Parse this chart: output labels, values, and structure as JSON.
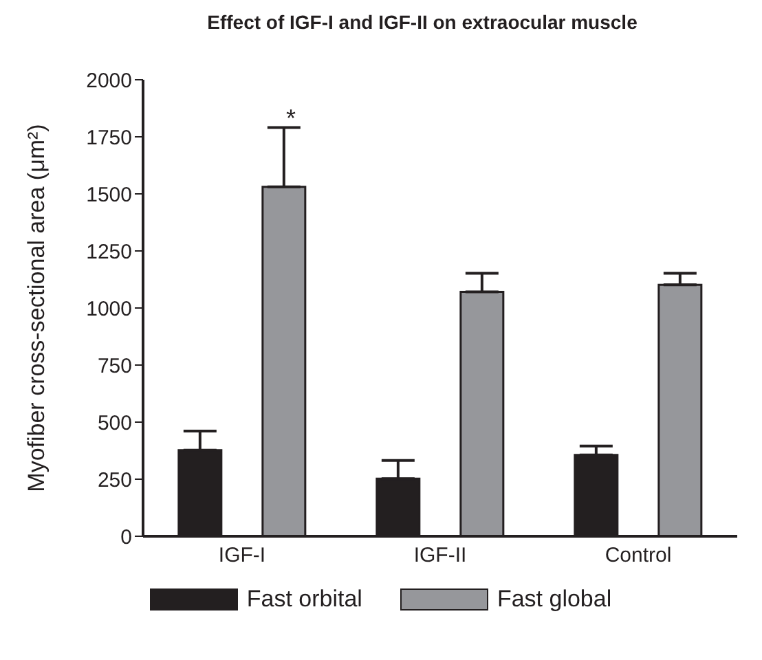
{
  "chart_data": {
    "type": "bar",
    "title": "Effect of IGF-I and IGF-II on extraocular muscle",
    "ylabel": "Myofiber cross-sectional area (μm²)",
    "categories": [
      "IGF-I",
      "IGF-II",
      "Control"
    ],
    "series": [
      {
        "name": "Fast orbital",
        "color": "#231f20",
        "values": [
          377,
          252,
          356
        ],
        "errors": [
          [
            377,
            461
          ],
          [
            252,
            332
          ],
          [
            356,
            395
          ]
        ]
      },
      {
        "name": "Fast global",
        "color": "#96979b",
        "values": [
          1531,
          1071,
          1102
        ],
        "errors": [
          [
            1531,
            1791
          ],
          [
            1071,
            1152
          ],
          [
            1102,
            1152
          ]
        ]
      }
    ],
    "ylim": [
      0,
      2000
    ],
    "yticks": [
      0,
      250,
      500,
      750,
      1000,
      1250,
      1500,
      1750,
      2000
    ],
    "grid": false,
    "legend": "bottom",
    "annotations": [
      "*"
    ]
  }
}
